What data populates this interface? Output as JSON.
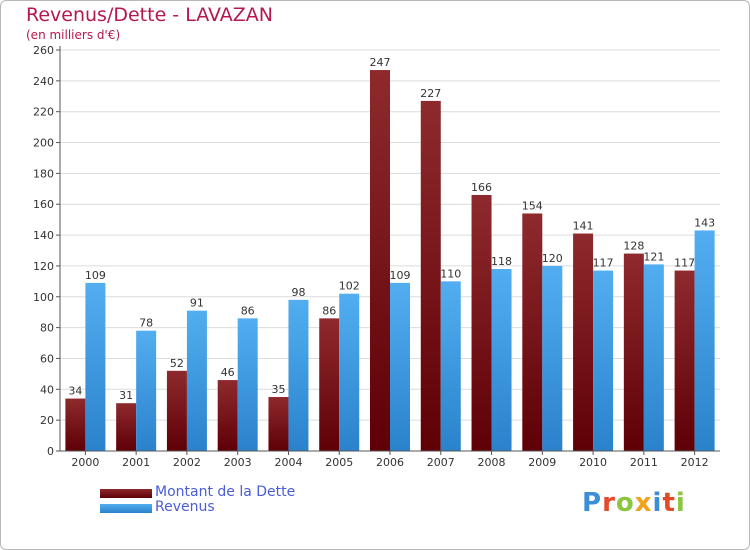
{
  "header": {
    "title": "Revenus/Dette - LAVAZAN",
    "subtitle": "(en milliers d'€)"
  },
  "legend": {
    "items": [
      {
        "label": "Montant de la Dette",
        "color": "#7a0f14"
      },
      {
        "label": "Revenus",
        "color": "#3f9be0"
      }
    ]
  },
  "logo": {
    "text": "Proxiti",
    "letters": [
      {
        "ch": "P",
        "color": "#3a8fd6"
      },
      {
        "ch": "r",
        "color": "#e24a2a"
      },
      {
        "ch": "o",
        "color": "#8cc63f"
      },
      {
        "ch": "x",
        "color": "#f2a11a"
      },
      {
        "ch": "i",
        "color": "#3a8fd6"
      },
      {
        "ch": "t",
        "color": "#e24a2a"
      },
      {
        "ch": "i",
        "color": "#8cc63f"
      }
    ]
  },
  "chart_data": {
    "type": "bar",
    "title": "Revenus/Dette - LAVAZAN",
    "subtitle": "(en milliers d'€)",
    "xlabel": "",
    "ylabel": "",
    "ylim": [
      0,
      260
    ],
    "yticks": [
      0,
      20,
      40,
      60,
      80,
      100,
      120,
      140,
      160,
      180,
      200,
      220,
      240,
      260
    ],
    "grid": true,
    "legend_position": "bottom-left",
    "categories": [
      "2000",
      "2001",
      "2002",
      "2003",
      "2004",
      "2005",
      "2006",
      "2007",
      "2008",
      "2009",
      "2010",
      "2011",
      "2012"
    ],
    "series": [
      {
        "name": "Montant de la Dette",
        "color": "#7a0f14",
        "values": [
          34,
          31,
          52,
          46,
          35,
          86,
          247,
          227,
          166,
          154,
          141,
          128,
          117
        ]
      },
      {
        "name": "Revenus",
        "color": "#3f9be0",
        "values": [
          109,
          78,
          91,
          86,
          98,
          102,
          109,
          110,
          118,
          120,
          117,
          121,
          143
        ]
      }
    ]
  }
}
